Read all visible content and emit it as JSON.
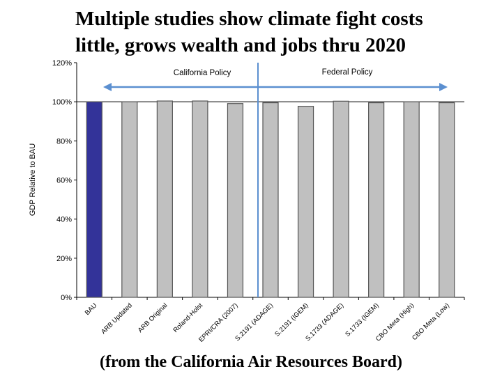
{
  "title_lines": [
    "Multiple studies show climate fight costs",
    "little, grows wealth and jobs thru 2020"
  ],
  "source": "(from the California Air Resources Board)",
  "chart_data": {
    "type": "bar",
    "ylabel": "GDP Relative to BAU",
    "xlabel": "",
    "ylim": [
      0,
      120
    ],
    "yticks": [
      "0%",
      "20%",
      "40%",
      "60%",
      "80%",
      "100%",
      "120%"
    ],
    "categories": [
      "BAU",
      "ARB Updated",
      "ARB Original",
      "Roland-Holst",
      "EPRI/CRA (2007)",
      "S.2191 (ADAGE)",
      "S.2191 (IGEM)",
      "S.1733 (ADAGE)",
      "S.1733 (IGEM)",
      "CBO Meta (High)",
      "CBO Meta (Low)"
    ],
    "values": [
      100,
      100,
      100.4,
      100.4,
      99.1,
      99.5,
      97.7,
      100.3,
      99.5,
      100,
      99.5
    ],
    "colors": {
      "highlight": "#333399",
      "default": "#c0c0c0",
      "divider": "#5b8fd0"
    },
    "annotations": {
      "left": "California Policy",
      "right": "Federal Policy"
    },
    "grid": false
  }
}
